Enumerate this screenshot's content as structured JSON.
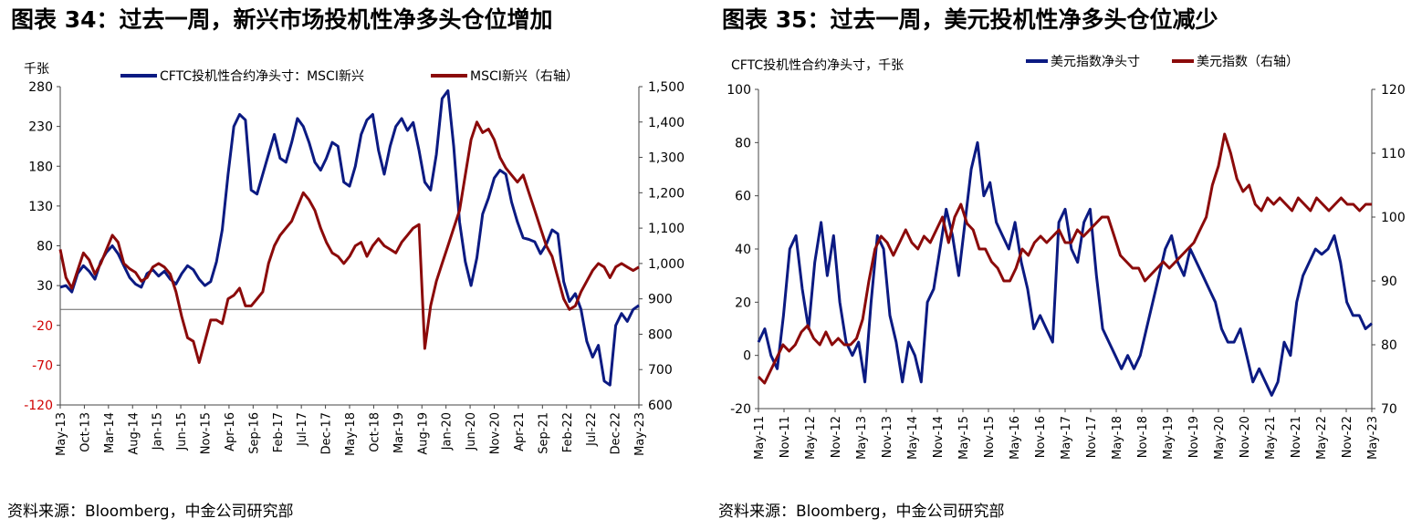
{
  "panels": [
    {
      "title": "图表 34：过去一周，新兴市场投机性净多头仓位增加",
      "source": "资料来源：Bloomberg，中金公司研究部"
    },
    {
      "title": "图表 35：过去一周，美元投机性净多头仓位减少",
      "source": "资料来源：Bloomberg，中金公司研究部"
    }
  ],
  "chart_data": [
    {
      "type": "line",
      "unit_label": "千张",
      "x_ticks": [
        "May-13",
        "Oct-13",
        "Mar-14",
        "Aug-14",
        "Jan-15",
        "Jun-15",
        "Nov-15",
        "Apr-16",
        "Sep-16",
        "Feb-17",
        "Jul-17",
        "Dec-17",
        "May-18",
        "Oct-18",
        "Mar-19",
        "Aug-19",
        "Jan-20",
        "Jun-20",
        "Nov-20",
        "Apr-21",
        "Sep-21",
        "Feb-22",
        "Jul-22",
        "Dec-22",
        "May-23"
      ],
      "y_left": {
        "min": -120,
        "max": 280,
        "ticks": [
          -120,
          -70,
          -20,
          30,
          80,
          130,
          180,
          230,
          280
        ]
      },
      "y_right": {
        "min": 600,
        "max": 1500,
        "ticks": [
          "600",
          "700",
          "800",
          "900",
          "1,000",
          "1,100",
          "1,200",
          "1,300",
          "1,400",
          "1,500"
        ]
      },
      "zero_line": 0,
      "legend_position": "top",
      "grid": false,
      "series": [
        {
          "name": "CFTC投机性合约净头寸：MSCI新兴",
          "axis": "left",
          "color": "#0b1a82",
          "values": [
            28,
            30,
            22,
            45,
            55,
            48,
            38,
            60,
            72,
            80,
            70,
            55,
            40,
            32,
            28,
            45,
            50,
            42,
            48,
            38,
            32,
            45,
            55,
            50,
            38,
            30,
            35,
            60,
            100,
            170,
            230,
            245,
            238,
            150,
            145,
            170,
            195,
            220,
            190,
            185,
            210,
            240,
            230,
            210,
            185,
            175,
            190,
            210,
            205,
            160,
            155,
            180,
            220,
            238,
            245,
            200,
            170,
            205,
            230,
            240,
            225,
            235,
            200,
            160,
            150,
            195,
            265,
            275,
            205,
            110,
            60,
            30,
            65,
            120,
            140,
            165,
            175,
            170,
            135,
            110,
            90,
            88,
            85,
            70,
            82,
            100,
            95,
            35,
            10,
            20,
            0,
            -40,
            -60,
            -45,
            -90,
            -95,
            -20,
            -5,
            -15,
            0,
            5
          ]
        },
        {
          "name": "MSCI新兴（右轴）",
          "axis": "right",
          "color": "#8b0a0a",
          "values": [
            1040,
            960,
            930,
            980,
            1030,
            1010,
            970,
            1000,
            1040,
            1080,
            1060,
            1000,
            985,
            975,
            950,
            960,
            990,
            1000,
            990,
            970,
            920,
            850,
            790,
            780,
            720,
            780,
            840,
            840,
            830,
            900,
            910,
            930,
            880,
            880,
            900,
            920,
            1000,
            1050,
            1080,
            1100,
            1120,
            1160,
            1200,
            1180,
            1150,
            1100,
            1060,
            1030,
            1020,
            1000,
            1020,
            1050,
            1060,
            1020,
            1050,
            1070,
            1050,
            1040,
            1030,
            1060,
            1080,
            1100,
            1110,
            760,
            880,
            950,
            1000,
            1050,
            1100,
            1150,
            1250,
            1350,
            1400,
            1370,
            1380,
            1350,
            1300,
            1270,
            1250,
            1230,
            1250,
            1200,
            1150,
            1100,
            1050,
            1020,
            960,
            900,
            870,
            880,
            920,
            950,
            980,
            1000,
            990,
            960,
            990,
            1000,
            990,
            980,
            990
          ]
        }
      ]
    },
    {
      "type": "line",
      "unit_label": "CFTC投机性合约净头寸，千张",
      "x_ticks": [
        "May-11",
        "Nov-11",
        "May-12",
        "Nov-12",
        "May-13",
        "Nov-13",
        "May-14",
        "Nov-14",
        "May-15",
        "Nov-15",
        "May-16",
        "Nov-16",
        "May-17",
        "Nov-17",
        "May-18",
        "Nov-18",
        "May-19",
        "Nov-19",
        "May-20",
        "Nov-20",
        "May-21",
        "Nov-21",
        "May-22",
        "Nov-22",
        "May-23"
      ],
      "y_left": {
        "min": -20,
        "max": 100,
        "ticks": [
          -20,
          0,
          20,
          40,
          60,
          80,
          100
        ]
      },
      "y_right": {
        "min": 70,
        "max": 120,
        "ticks": [
          70,
          80,
          90,
          100,
          110,
          120
        ]
      },
      "legend_position": "top-right",
      "grid": false,
      "series": [
        {
          "name": "美元指数净头寸",
          "axis": "left",
          "color": "#0b1a82",
          "values": [
            5,
            10,
            0,
            -5,
            15,
            40,
            45,
            25,
            10,
            35,
            50,
            30,
            45,
            20,
            5,
            0,
            5,
            -10,
            20,
            45,
            40,
            15,
            5,
            -10,
            5,
            0,
            -10,
            20,
            25,
            40,
            55,
            45,
            30,
            50,
            70,
            80,
            60,
            65,
            50,
            45,
            40,
            50,
            35,
            25,
            10,
            15,
            10,
            5,
            50,
            55,
            40,
            35,
            50,
            55,
            30,
            10,
            5,
            0,
            -5,
            0,
            -5,
            0,
            10,
            20,
            30,
            40,
            45,
            35,
            30,
            40,
            35,
            30,
            25,
            20,
            10,
            5,
            5,
            10,
            0,
            -10,
            -5,
            -10,
            -15,
            -10,
            5,
            0,
            20,
            30,
            35,
            40,
            38,
            40,
            45,
            35,
            20,
            15,
            15,
            10,
            12
          ]
        },
        {
          "name": "美元指数（右轴）",
          "axis": "right",
          "color": "#8b0a0a",
          "values": [
            75,
            74,
            76,
            78,
            80,
            79,
            80,
            82,
            83,
            81,
            80,
            82,
            80,
            81,
            80,
            80,
            81,
            84,
            90,
            95,
            97,
            96,
            94,
            96,
            98,
            96,
            95,
            97,
            96,
            98,
            100,
            96,
            100,
            102,
            99,
            98,
            95,
            95,
            93,
            92,
            90,
            90,
            92,
            95,
            94,
            96,
            97,
            96,
            97,
            98,
            96,
            96,
            98,
            97,
            98,
            99,
            100,
            100,
            97,
            94,
            93,
            92,
            92,
            90,
            91,
            92,
            93,
            92,
            93,
            94,
            95,
            96,
            98,
            100,
            105,
            108,
            113,
            110,
            106,
            104,
            105,
            102,
            101,
            103,
            102,
            103,
            102,
            101,
            103,
            102,
            101,
            103,
            102,
            101,
            102,
            103,
            102,
            102,
            101,
            102,
            102
          ]
        }
      ]
    }
  ]
}
